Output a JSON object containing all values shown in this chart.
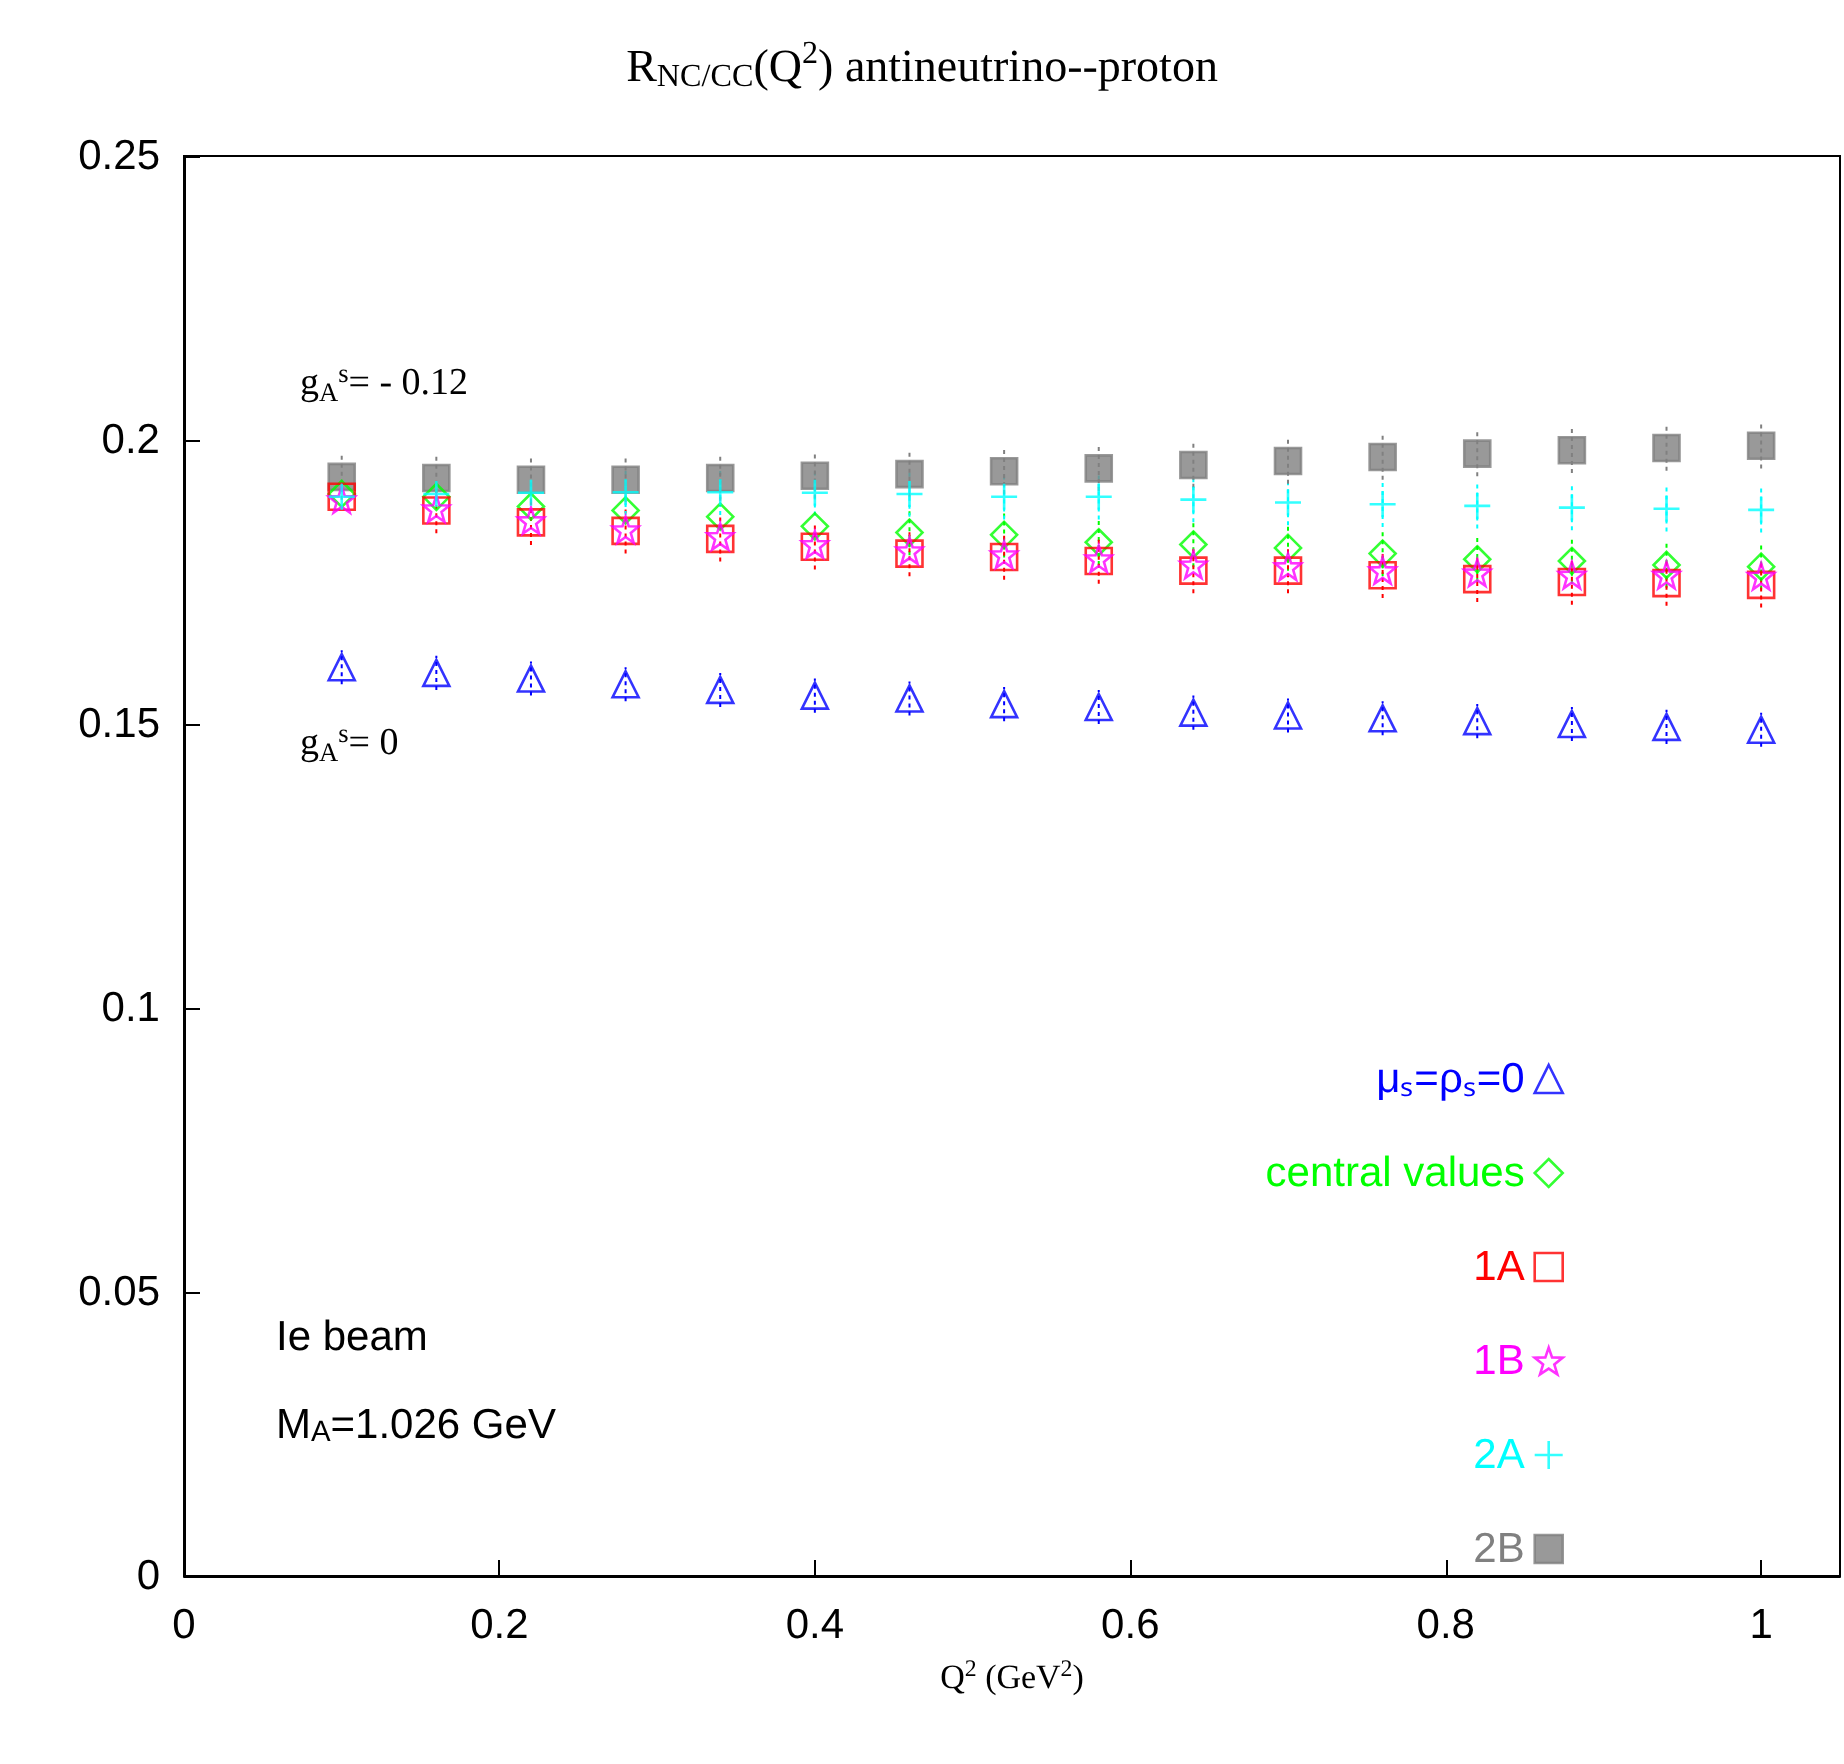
{
  "chart_data": {
    "type": "scatter",
    "title": "R$_{NC/CC}$(Q$^{2}$) antineutrino--proton",
    "xlabel": "Q$^{2}$ (GeV$^{2}$)",
    "x": [
      0.1,
      0.16,
      0.22,
      0.28,
      0.34,
      0.4,
      0.46,
      0.52,
      0.58,
      0.64,
      0.7,
      0.76,
      0.82,
      0.88,
      0.94,
      1.0
    ],
    "xlim": [
      0,
      1.05
    ],
    "xticks": [
      0,
      0.2,
      0.4,
      0.6,
      0.8,
      1
    ],
    "ylim": [
      0,
      0.25
    ],
    "yticks": [
      0,
      0.05,
      0.1,
      0.15,
      0.2,
      0.25
    ],
    "grid": false,
    "legend": "bottom right",
    "series": [
      {
        "name": "μₛ=ρₛ=0",
        "color": "#0000ff",
        "marker": "triangle",
        "values": [
          0.16,
          0.159,
          0.158,
          0.157,
          0.156,
          0.155,
          0.1545,
          0.1535,
          0.153,
          0.152,
          0.1515,
          0.151,
          0.1505,
          0.15,
          0.1495,
          0.149
        ],
        "errors": [
          0.003,
          0.003,
          0.003,
          0.003,
          0.003,
          0.003,
          0.003,
          0.003,
          0.003,
          0.003,
          0.003,
          0.003,
          0.003,
          0.003,
          0.003,
          0.003
        ]
      },
      {
        "name": "central values",
        "color": "#00ff00",
        "marker": "diamond",
        "values": [
          0.1905,
          0.19,
          0.1883,
          0.1876,
          0.1865,
          0.1848,
          0.1837,
          0.1833,
          0.182,
          0.1816,
          0.181,
          0.18,
          0.179,
          0.1787,
          0.178,
          0.1777
        ],
        "errors": [
          null,
          null,
          null,
          null,
          null,
          null,
          0.004,
          0.004,
          0.004,
          0.004,
          0.004,
          0.004,
          0.004,
          0.004,
          0.004,
          0.004
        ]
      },
      {
        "name": "1A",
        "color": "#ff0000",
        "marker": "square",
        "values": [
          0.19,
          0.1876,
          0.1855,
          0.184,
          0.1826,
          0.1812,
          0.18,
          0.1794,
          0.1787,
          0.177,
          0.177,
          0.1762,
          0.1755,
          0.175,
          0.1748,
          0.1745
        ],
        "errors": [
          null,
          0.004,
          0.004,
          0.004,
          0.004,
          0.004,
          0.004,
          0.004,
          0.004,
          0.004,
          0.004,
          0.004,
          0.004,
          0.004,
          0.004,
          0.004
        ]
      },
      {
        "name": "1B",
        "color": "#ff00ff",
        "marker": "star",
        "values": [
          0.1895,
          0.1879,
          0.1858,
          0.1842,
          0.183,
          0.1816,
          0.1805,
          0.1798,
          0.1791,
          0.178,
          0.1777,
          0.177,
          0.1766,
          0.1762,
          0.1762,
          0.176
        ]
      },
      {
        "name": "2A",
        "color": "#00ffff",
        "marker": "cross",
        "values": [
          0.19,
          0.1905,
          0.1907,
          0.1908,
          0.1908,
          0.1907,
          0.1905,
          0.19,
          0.19,
          0.1895,
          0.189,
          0.1887,
          0.1884,
          0.1881,
          0.1879,
          0.1877
        ],
        "errors": [
          null,
          null,
          null,
          0.004,
          0.004,
          0.004,
          0.004,
          0.004,
          0.004,
          0.004,
          0.004,
          0.004,
          0.004,
          0.004,
          0.004,
          0.004
        ]
      },
      {
        "name": "2B",
        "color": "#808080",
        "marker": "square",
        "values": [
          0.1935,
          0.1933,
          0.193,
          0.193,
          0.1933,
          0.1937,
          0.194,
          0.1945,
          0.195,
          0.1956,
          0.1963,
          0.197,
          0.1976,
          0.1982,
          0.1986,
          0.199
        ],
        "errors": [
          0.004,
          0.004,
          0.004,
          0.004,
          0.004,
          0.004,
          0.004,
          0.004,
          0.004,
          0.004,
          0.004,
          0.004,
          0.004,
          0.004,
          0.004,
          0.004
        ]
      }
    ],
    "annotations": [
      "g$_{A}$$^{s}$= - 0.12",
      "g$_{A}$$^{s}$= 0",
      "Ie beam",
      "M$_{A}$=1.026 GeV"
    ]
  }
}
